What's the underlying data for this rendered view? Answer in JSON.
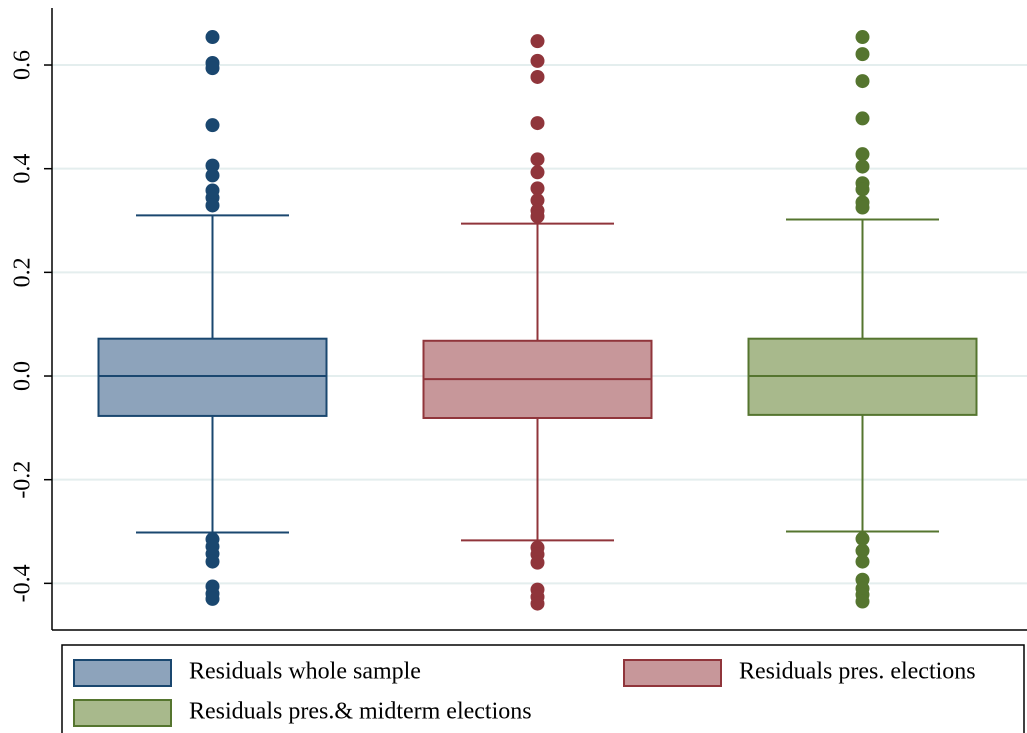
{
  "chart_data": {
    "type": "box",
    "ylim": [
      -0.49,
      0.71
    ],
    "yticks": [
      0.6,
      0.4,
      0.2,
      {
        "value": 0,
        "label": "0.0"
      },
      -0.2,
      -0.4
    ],
    "grid": true,
    "legend": "bottom",
    "series": [
      {
        "name": "Residuals whole sample",
        "color": "#1a476f",
        "fill": "#8da3bb",
        "q1": -0.077,
        "median": 0.0,
        "q3": 0.072,
        "whisker_low": -0.302,
        "whisker_high": 0.31,
        "outliers": [
          0.654,
          0.604,
          0.594,
          0.484,
          0.406,
          0.387,
          0.358,
          0.344,
          0.329,
          -0.315,
          -0.329,
          -0.343,
          -0.358,
          -0.406,
          -0.42,
          -0.43
        ]
      },
      {
        "name": "Residuals pres. elections",
        "color": "#90353b",
        "fill": "#c7979a",
        "q1": -0.081,
        "median": -0.006,
        "q3": 0.068,
        "whisker_low": -0.317,
        "whisker_high": 0.294,
        "outliers": [
          0.646,
          0.608,
          0.577,
          0.488,
          0.418,
          0.393,
          0.362,
          0.339,
          0.319,
          0.308,
          -0.331,
          -0.344,
          -0.36,
          -0.412,
          -0.426,
          -0.439
        ]
      },
      {
        "name": "Residuals pres.& midterm elections",
        "color": "#55752f",
        "fill": "#a8b98c",
        "q1": -0.075,
        "median": 0.0,
        "q3": 0.072,
        "whisker_low": -0.3,
        "whisker_high": 0.302,
        "outliers": [
          0.654,
          0.621,
          0.569,
          0.497,
          0.428,
          0.404,
          0.372,
          0.36,
          0.335,
          0.325,
          -0.314,
          -0.337,
          -0.358,
          -0.393,
          -0.41,
          -0.422,
          -0.435
        ]
      }
    ]
  }
}
